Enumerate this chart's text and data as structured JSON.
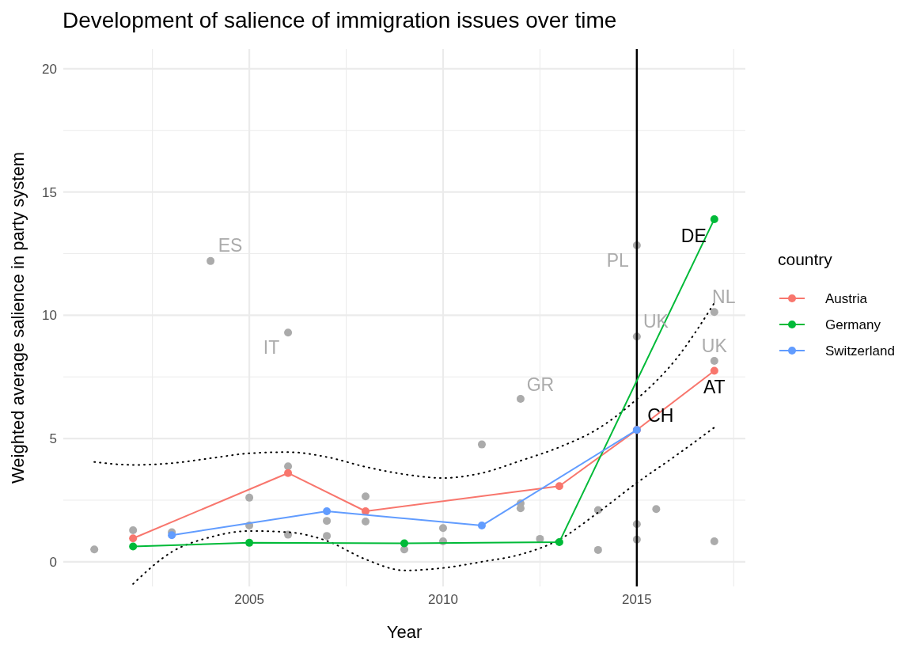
{
  "chart_data": {
    "type": "line",
    "title": "Development of salience of immigration issues over time",
    "xlabel": "Year",
    "ylabel": "Weighted average salience in party system",
    "legend_title": "country",
    "legend": "right",
    "grid": true,
    "marker": "circle",
    "xlim": [
      2000.2,
      2017.8
    ],
    "xticks": [
      {
        "value": 2002.5,
        "label": null
      },
      2005,
      {
        "value": 2007.5,
        "label": null
      },
      2010,
      {
        "value": 2012.5,
        "label": null
      },
      2015,
      {
        "value": 2017.5,
        "label": null
      }
    ],
    "ylim": [
      -1,
      20.8
    ],
    "yticks": [
      0,
      {
        "value": 2.5,
        "label": null
      },
      5,
      {
        "value": 7.5,
        "label": null
      },
      10,
      {
        "value": 12.5,
        "label": null
      },
      15,
      {
        "value": 17.5,
        "label": null
      },
      20
    ],
    "ref_lines": [
      {
        "axis": "x",
        "value": 2015,
        "color": "#000000"
      }
    ],
    "series": [
      {
        "type": "scatter",
        "color": "#ababab",
        "x": [
          2001,
          2002,
          2003,
          2004,
          2005,
          2005,
          2006,
          2006,
          2006,
          2007,
          2007,
          2008,
          2008,
          2009,
          2010,
          2010,
          2011,
          2012,
          2012,
          2012,
          2012.5,
          2014,
          2014,
          2015,
          2015,
          2015,
          2015,
          2015.5,
          2017,
          2017,
          2017
        ],
        "values": [
          0.5,
          1.28,
          1.2,
          12.2,
          2.6,
          1.47,
          3.87,
          1.1,
          9.3,
          1.66,
          1.05,
          2.65,
          1.63,
          0.5,
          1.37,
          0.83,
          4.76,
          6.61,
          2.37,
          2.17,
          0.93,
          2.1,
          0.48,
          12.84,
          9.14,
          1.53,
          0.9,
          2.14,
          10.13,
          8.15,
          0.83
        ]
      },
      {
        "type": "line",
        "color": "#000000",
        "line_style": "dotted",
        "marker": "none",
        "x": [
          2001,
          2002,
          2003,
          2004,
          2005,
          2006,
          2007,
          2008,
          2009,
          2010,
          2011,
          2012,
          2013,
          2014,
          2015,
          2016,
          2017
        ],
        "values": [
          4.05,
          3.93,
          4.0,
          4.2,
          4.4,
          4.45,
          4.25,
          3.85,
          3.55,
          3.4,
          3.6,
          4.1,
          4.65,
          5.4,
          6.6,
          8.2,
          10.5
        ]
      },
      {
        "type": "line",
        "color": "#000000",
        "line_style": "dotted",
        "marker": "none",
        "x": [
          2002,
          2003,
          2004,
          2005,
          2006,
          2007,
          2008,
          2009,
          2010,
          2011,
          2012,
          2013,
          2014,
          2015,
          2016,
          2017
        ],
        "values": [
          -0.9,
          0.4,
          1.0,
          1.25,
          1.2,
          0.85,
          0.1,
          -0.35,
          -0.25,
          0.0,
          0.3,
          0.9,
          2.0,
          3.2,
          4.3,
          5.45
        ]
      },
      {
        "name": "Austria",
        "color": "#f8766d",
        "x": [
          2002,
          2006,
          2008,
          2013,
          2015,
          2017
        ],
        "values": [
          0.95,
          3.6,
          2.05,
          3.07,
          5.35,
          7.75
        ]
      },
      {
        "name": "Germany",
        "color": "#00ba38",
        "x": [
          2002,
          2005,
          2009,
          2013,
          2017
        ],
        "values": [
          0.62,
          0.77,
          0.75,
          0.8,
          13.9
        ]
      },
      {
        "name": "Switzerland",
        "color": "#619cff",
        "x": [
          2003,
          2007,
          2011,
          2015
        ],
        "values": [
          1.08,
          2.05,
          1.47,
          5.35
        ]
      }
    ],
    "annotations": [
      {
        "text": "ES",
        "x": 2004,
        "y": 12.2
      },
      {
        "text": "IT",
        "x": 2006,
        "y": 9.3
      },
      {
        "text": "GR",
        "x": 2012,
        "y": 6.61
      },
      {
        "text": "PL",
        "x": 2015,
        "y": 12.84
      },
      {
        "text": "UK",
        "x": 2015,
        "y": 9.14
      },
      {
        "text": "NL",
        "x": 2017,
        "y": 10.13
      },
      {
        "text": "UK",
        "x": 2017,
        "y": 8.15
      },
      {
        "text": "DE",
        "x": 2017,
        "y": 13.9
      },
      {
        "text": "AT",
        "x": 2017,
        "y": 7.75
      },
      {
        "text": "CH",
        "x": 2015,
        "y": 5.35
      }
    ]
  }
}
